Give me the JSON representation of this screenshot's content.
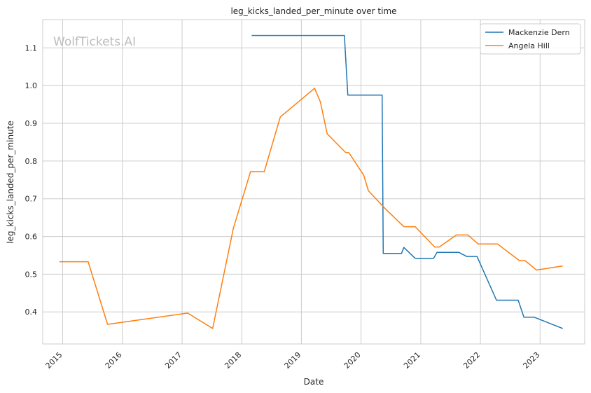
{
  "chart_data": {
    "type": "line",
    "title": "leg_kicks_landed_per_minute over time",
    "xlabel": "Date",
    "ylabel": "leg_kicks_landed_per_minute",
    "watermark": "WolfTickets.AI",
    "xlim": [
      "2014-09-01",
      "2023-10-01"
    ],
    "ylim": [
      0.315,
      1.175
    ],
    "x_ticks": [
      "2015",
      "2016",
      "2017",
      "2018",
      "2019",
      "2020",
      "2021",
      "2022",
      "2023"
    ],
    "y_ticks": [
      "0.4",
      "0.5",
      "0.6",
      "0.7",
      "0.8",
      "0.9",
      "1.0",
      "1.1"
    ],
    "grid": true,
    "legend_position": "top-right",
    "series": [
      {
        "name": "Mackenzie Dern",
        "color": "#1f77b4",
        "points": [
          [
            "2018-03-03",
            1.133
          ],
          [
            "2019-09-21",
            1.133
          ],
          [
            "2019-10-12",
            0.975
          ],
          [
            "2020-05-09",
            0.975
          ],
          [
            "2020-05-16",
            0.555
          ],
          [
            "2020-09-05",
            0.555
          ],
          [
            "2020-09-19",
            0.571
          ],
          [
            "2020-11-28",
            0.542
          ],
          [
            "2021-03-20",
            0.542
          ],
          [
            "2021-04-10",
            0.558
          ],
          [
            "2021-08-21",
            0.558
          ],
          [
            "2021-10-09",
            0.547
          ],
          [
            "2021-12-11",
            0.547
          ],
          [
            "2022-04-09",
            0.431
          ],
          [
            "2022-08-20",
            0.431
          ],
          [
            "2022-09-24",
            0.386
          ],
          [
            "2022-11-26",
            0.386
          ],
          [
            "2023-05-20",
            0.356
          ]
        ]
      },
      {
        "name": "Angela Hill",
        "color": "#ff7f0e",
        "points": [
          [
            "2014-12-12",
            0.533
          ],
          [
            "2015-06-06",
            0.533
          ],
          [
            "2015-10-03",
            0.367
          ],
          [
            "2017-02-04",
            0.397
          ],
          [
            "2017-07-07",
            0.356
          ],
          [
            "2017-11-11",
            0.622
          ],
          [
            "2018-02-24",
            0.772
          ],
          [
            "2018-05-19",
            0.772
          ],
          [
            "2018-08-25",
            0.917
          ],
          [
            "2019-03-23",
            0.993
          ],
          [
            "2019-04-27",
            0.957
          ],
          [
            "2019-06-08",
            0.872
          ],
          [
            "2019-09-28",
            0.823
          ],
          [
            "2019-10-19",
            0.822
          ],
          [
            "2020-01-18",
            0.762
          ],
          [
            "2020-02-15",
            0.721
          ],
          [
            "2020-05-30",
            0.673
          ],
          [
            "2020-09-19",
            0.626
          ],
          [
            "2020-11-28",
            0.626
          ],
          [
            "2021-03-27",
            0.572
          ],
          [
            "2021-04-24",
            0.572
          ],
          [
            "2021-08-07",
            0.604
          ],
          [
            "2021-10-16",
            0.604
          ],
          [
            "2021-12-18",
            0.58
          ],
          [
            "2022-04-16",
            0.58
          ],
          [
            "2022-08-27",
            0.536
          ],
          [
            "2022-10-01",
            0.536
          ],
          [
            "2022-12-10",
            0.511
          ],
          [
            "2023-05-20",
            0.522
          ]
        ]
      }
    ]
  }
}
